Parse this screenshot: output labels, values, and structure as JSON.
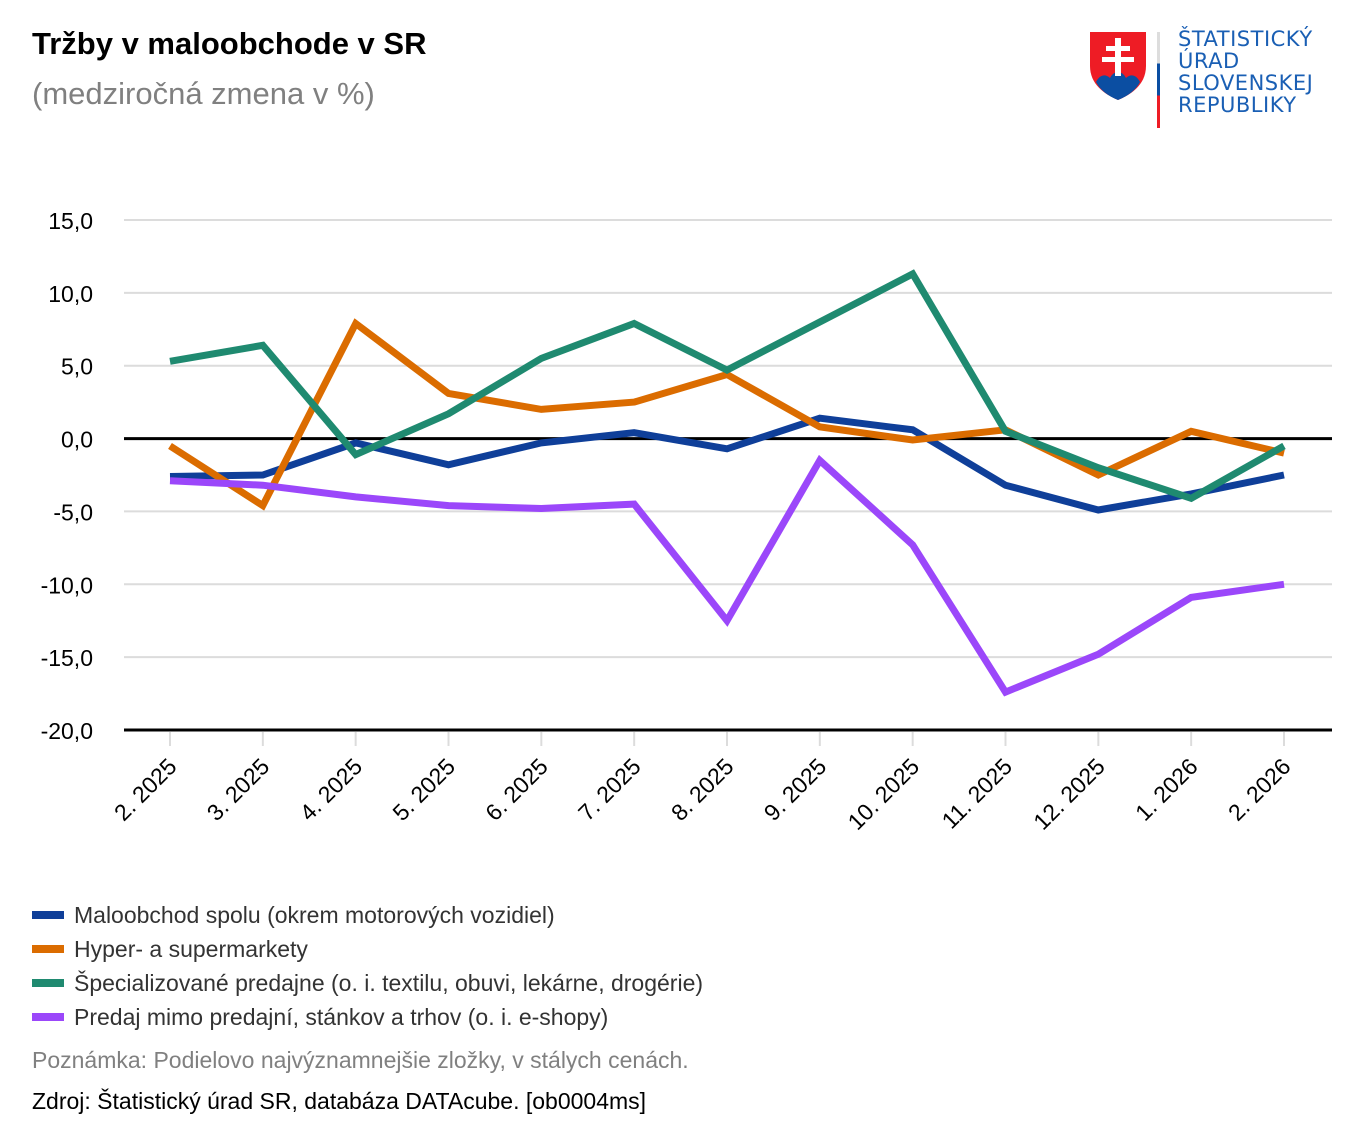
{
  "header": {
    "title": "Tržby v maloobchode v SR",
    "subtitle": "(medziročná zmena v %)"
  },
  "logo": {
    "icon": "slovak-coat-of-arms-icon",
    "lines": [
      "ŠTATISTICKÝ",
      "ÚRAD",
      "SLOVENSKEJ",
      "REPUBLIKY"
    ],
    "text_color": "#1a5fb4"
  },
  "chart_data": {
    "type": "line",
    "title": "Tržby v maloobchode v SR",
    "subtitle": "(medziročná zmena v %)",
    "xlabel": "",
    "ylabel": "",
    "ylim": [
      -20,
      15
    ],
    "yticks": [
      15,
      10,
      5,
      0,
      -5,
      -10,
      -15,
      -20
    ],
    "ytick_labels": [
      "15,0",
      "10,0",
      "5,0",
      "0,0",
      "-5,0",
      "-10,0",
      "-15,0",
      "-20,0"
    ],
    "grid": true,
    "legend_position": "bottom",
    "categories": [
      "2. 2025",
      "3. 2025",
      "4. 2025",
      "5. 2025",
      "6. 2025",
      "7. 2025",
      "8. 2025",
      "9. 2025",
      "10. 2025",
      "11. 2025",
      "12. 2025",
      "1. 2026",
      "2. 2026"
    ],
    "series": [
      {
        "name": "Maloobchod spolu (okrem motorových vozidiel)",
        "color": "#0f3f99",
        "values": [
          -2.6,
          -2.5,
          -0.3,
          -1.8,
          -0.3,
          0.4,
          -0.7,
          1.4,
          0.6,
          -3.2,
          -4.9,
          -3.8,
          -2.5
        ]
      },
      {
        "name": "Hyper- a supermarkety",
        "color": "#db6c00",
        "values": [
          -0.5,
          -4.6,
          7.9,
          3.1,
          2.0,
          2.5,
          4.4,
          0.8,
          -0.1,
          0.6,
          -2.5,
          0.5,
          -1.0
        ]
      },
      {
        "name": "Špecializované predajne (o. i. textilu, obuvi, lekárne, drogérie)",
        "color": "#1f8a70",
        "values": [
          5.3,
          6.4,
          -1.1,
          1.7,
          5.5,
          7.9,
          4.7,
          8.0,
          11.3,
          0.5,
          -2.0,
          -4.1,
          -0.5
        ]
      },
      {
        "name": "Predaj mimo predajní, stánkov a trhov (o. i. e-shopy)",
        "color": "#9b47fa",
        "values": [
          -2.9,
          -3.2,
          -4.0,
          -4.6,
          -4.8,
          -4.5,
          -12.5,
          -1.5,
          -7.3,
          -17.4,
          -14.8,
          -10.9,
          -10.0
        ]
      }
    ]
  },
  "footer": {
    "note": "Poznámka: Podielovo najvýznamnejšie zložky, v stálych cenách.",
    "source": "Zdroj: Štatistický úrad SR, databáza DATAcube. [ob0004ms]"
  }
}
